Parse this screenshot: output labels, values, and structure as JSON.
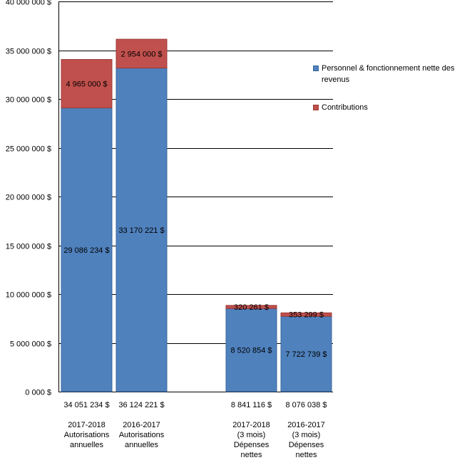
{
  "chart_data": {
    "type": "bar",
    "stacked": true,
    "title": "",
    "xlabel": "",
    "ylabel": "",
    "ylim": [
      0,
      40000000
    ],
    "y_ticks": [
      0,
      5000000,
      10000000,
      15000000,
      20000000,
      25000000,
      30000000,
      35000000,
      40000000
    ],
    "y_tick_labels": [
      "0 000 $",
      "5 000 000 $",
      "10 000 000 $",
      "15 000 000 $",
      "20 000 000 $",
      "25 000 000 $",
      "30 000 000 $",
      "35 000 000 $",
      "40 000 000 $"
    ],
    "grid": true,
    "legend_position": "right",
    "categories": [
      {
        "total": "34 051 234 $",
        "lines": [
          "2017-2018",
          "Autorisations",
          "annuelles"
        ]
      },
      {
        "total": "36 124 221 $",
        "lines": [
          "2016-2017",
          "Autorisations",
          "annuelles"
        ]
      },
      {
        "total": "8 841 116 $",
        "lines": [
          "2017-2018",
          "(3 mois)",
          "Dépenses",
          "nettes"
        ]
      },
      {
        "total": "8 076 038 $",
        "lines": [
          "2016-2017",
          "(3 mois)",
          "Dépenses",
          "nettes"
        ]
      }
    ],
    "series": [
      {
        "name": "Personnel & fonctionnement nette des revenus",
        "color": "#4f81bd",
        "values": [
          29086234,
          33170221,
          8520854,
          7722739
        ],
        "labels": [
          "29 086 234 $",
          "33 170 221 $",
          "8 520 854 $",
          "7 722 739 $"
        ]
      },
      {
        "name": "Contributions",
        "color": "#c0504d",
        "values": [
          4965000,
          2954000,
          320261,
          353299
        ],
        "labels": [
          "4 965 000 $",
          "2 954 000 $",
          "320 261 $",
          "353 299 $"
        ]
      }
    ]
  },
  "legend": {
    "items": [
      {
        "label": "Personnel & fonctionnement nette des revenus",
        "color": "#4f81bd"
      },
      {
        "label": "Contributions",
        "color": "#c0504d"
      }
    ]
  }
}
